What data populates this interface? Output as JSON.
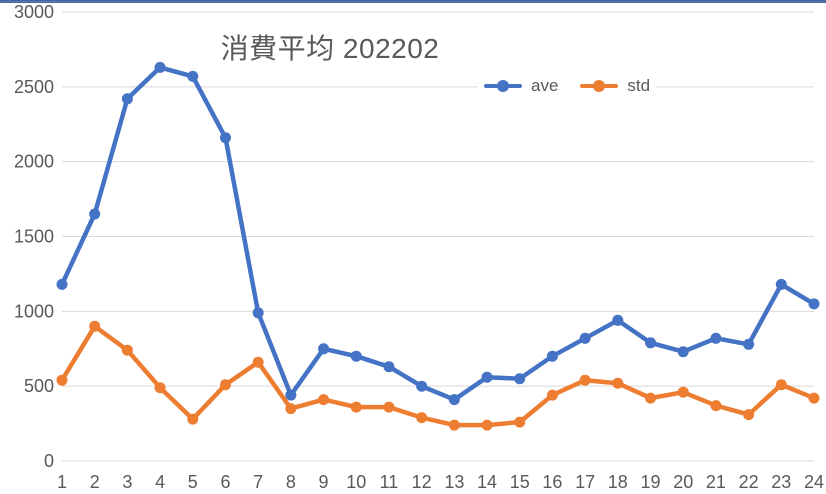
{
  "window": {
    "top_border_color": "#44598e"
  },
  "chart_data": {
    "type": "line",
    "title": "消費平均 202202",
    "x": [
      1,
      2,
      3,
      4,
      5,
      6,
      7,
      8,
      9,
      10,
      11,
      12,
      13,
      14,
      15,
      16,
      17,
      18,
      19,
      20,
      21,
      22,
      23,
      24
    ],
    "series": [
      {
        "name": "ave",
        "color": "#4472C4",
        "values": [
          1180,
          1650,
          2420,
          2630,
          2570,
          2160,
          990,
          440,
          750,
          700,
          630,
          500,
          410,
          560,
          550,
          700,
          820,
          940,
          790,
          730,
          820,
          780,
          1180,
          1050
        ]
      },
      {
        "name": "std",
        "color": "#ED7D31",
        "values": [
          540,
          900,
          740,
          490,
          280,
          510,
          660,
          350,
          410,
          360,
          360,
          290,
          240,
          240,
          260,
          440,
          540,
          520,
          420,
          460,
          370,
          310,
          510,
          420
        ]
      }
    ],
    "xlabel": "",
    "ylabel": "",
    "ylim": [
      0,
      3000
    ],
    "yticks": [
      0,
      500,
      1000,
      1500,
      2000,
      2500,
      3000
    ],
    "grid": true,
    "legend_position": "top-right",
    "gridline_color": "#D9D9D9",
    "axis_text_color": "#595959",
    "title_color": "#595959"
  }
}
